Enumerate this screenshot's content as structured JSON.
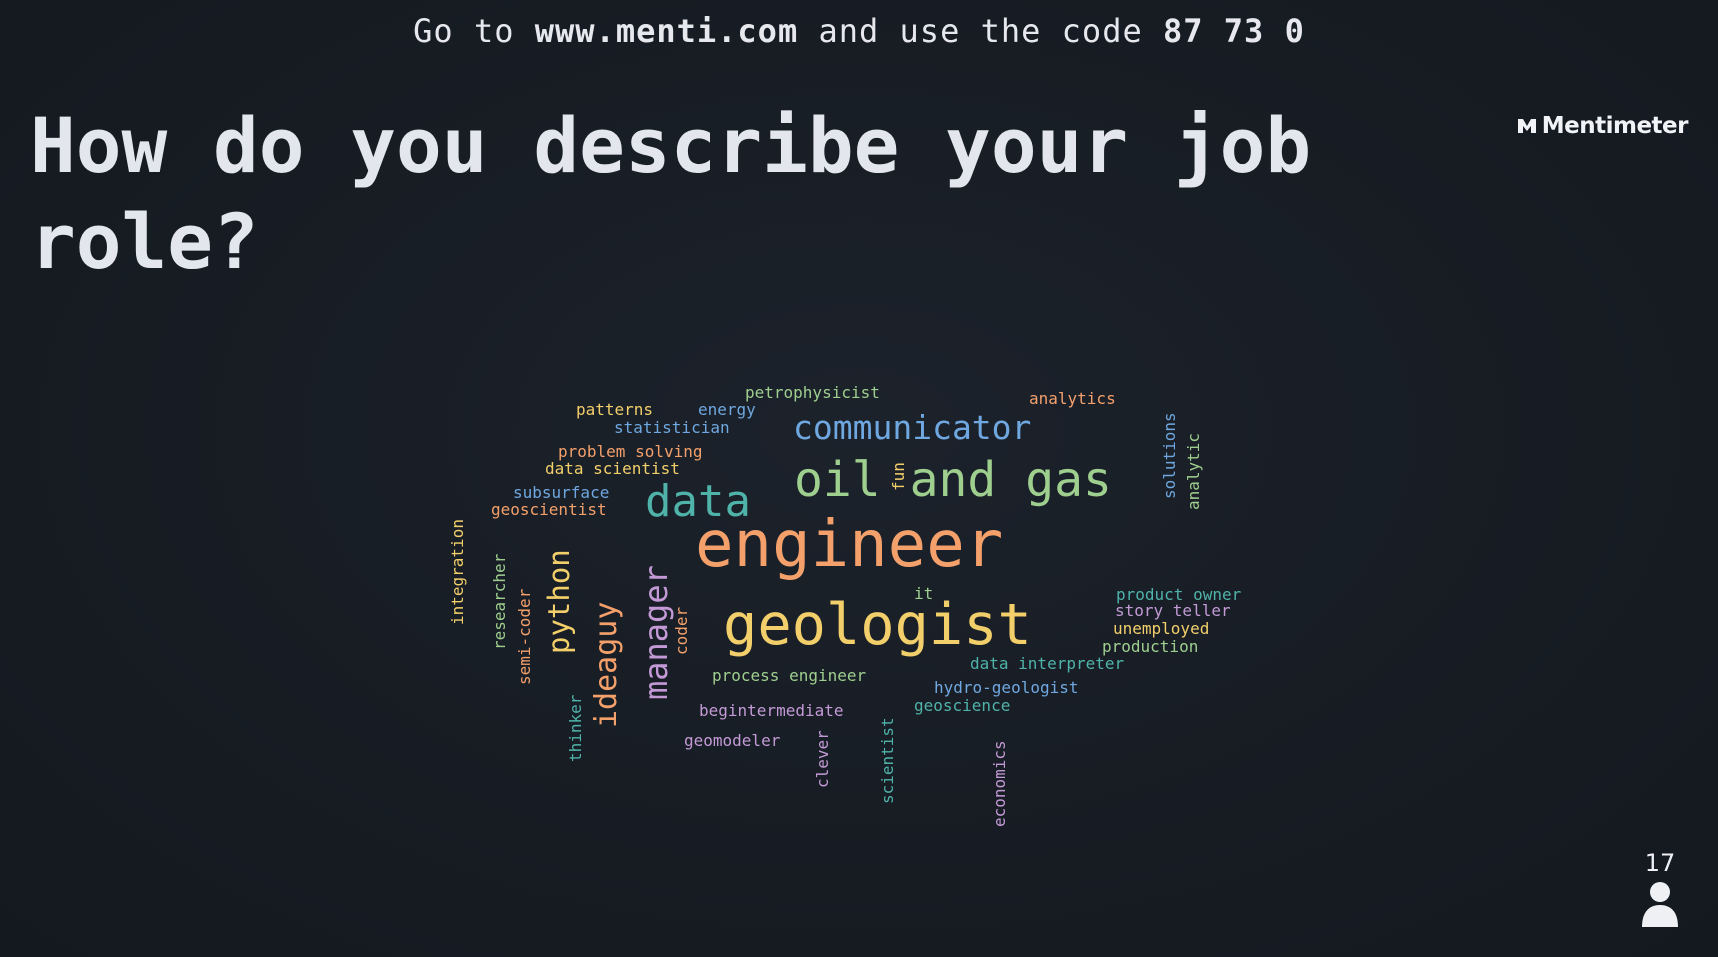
{
  "header": {
    "prefix": "Go to",
    "url": "www.menti.com",
    "middle": "and use the code",
    "code": "87 73 0"
  },
  "brand": {
    "name": "Mentimeter"
  },
  "question": {
    "title": "How do you describe your job role?"
  },
  "participants": {
    "count": "17",
    "icon": "person-icon"
  },
  "wordcloud": {
    "words": [
      {
        "text": "engineer",
        "color": "#f4a06b"
      },
      {
        "text": "geologist",
        "color": "#f2cf6a"
      },
      {
        "text": "oil and gas",
        "color": "#9fcf8f"
      },
      {
        "text": "data",
        "color": "#4fb3aa"
      },
      {
        "text": "communicator",
        "color": "#6fa8e0"
      },
      {
        "text": "manager",
        "color": "#c39ad6"
      },
      {
        "text": "ideaguy",
        "color": "#f4a06b"
      },
      {
        "text": "python",
        "color": "#f2cf6a"
      },
      {
        "text": "petrophysicist",
        "color": "#9fcf8f"
      },
      {
        "text": "analytics",
        "color": "#f4a06b"
      },
      {
        "text": "patterns",
        "color": "#f2cf6a"
      },
      {
        "text": "energy",
        "color": "#6fa8e0"
      },
      {
        "text": "statistician",
        "color": "#6fa8e0"
      },
      {
        "text": "problem solving",
        "color": "#f4a06b"
      },
      {
        "text": "data scientist",
        "color": "#f2cf6a"
      },
      {
        "text": "subsurface",
        "color": "#6fa8e0"
      },
      {
        "text": "geoscientist",
        "color": "#f4a06b"
      },
      {
        "text": "fun",
        "color": "#f2cf6a"
      },
      {
        "text": "solutions",
        "color": "#6fa8e0"
      },
      {
        "text": "analytic",
        "color": "#9fcf8f"
      },
      {
        "text": "integration",
        "color": "#f2cf6a"
      },
      {
        "text": "researcher",
        "color": "#9fcf8f"
      },
      {
        "text": "semi-coder",
        "color": "#f4a06b"
      },
      {
        "text": "coder",
        "color": "#f4a06b"
      },
      {
        "text": "thinker",
        "color": "#4fb3aa"
      },
      {
        "text": "it",
        "color": "#9fcf8f"
      },
      {
        "text": "product owner",
        "color": "#4fb3aa"
      },
      {
        "text": "story teller",
        "color": "#c39ad6"
      },
      {
        "text": "unemployed",
        "color": "#f2cf6a"
      },
      {
        "text": "production",
        "color": "#9fcf8f"
      },
      {
        "text": "data interpreter",
        "color": "#4fb3aa"
      },
      {
        "text": "process engineer",
        "color": "#9fcf8f"
      },
      {
        "text": "hydro-geologist",
        "color": "#6fa8e0"
      },
      {
        "text": "geoscience",
        "color": "#4fb3aa"
      },
      {
        "text": "begintermediate",
        "color": "#c39ad6"
      },
      {
        "text": "geomodeler",
        "color": "#c39ad6"
      },
      {
        "text": "clever",
        "color": "#c39ad6"
      },
      {
        "text": "scientist",
        "color": "#4fb3aa"
      },
      {
        "text": "economics",
        "color": "#c39ad6"
      }
    ]
  }
}
